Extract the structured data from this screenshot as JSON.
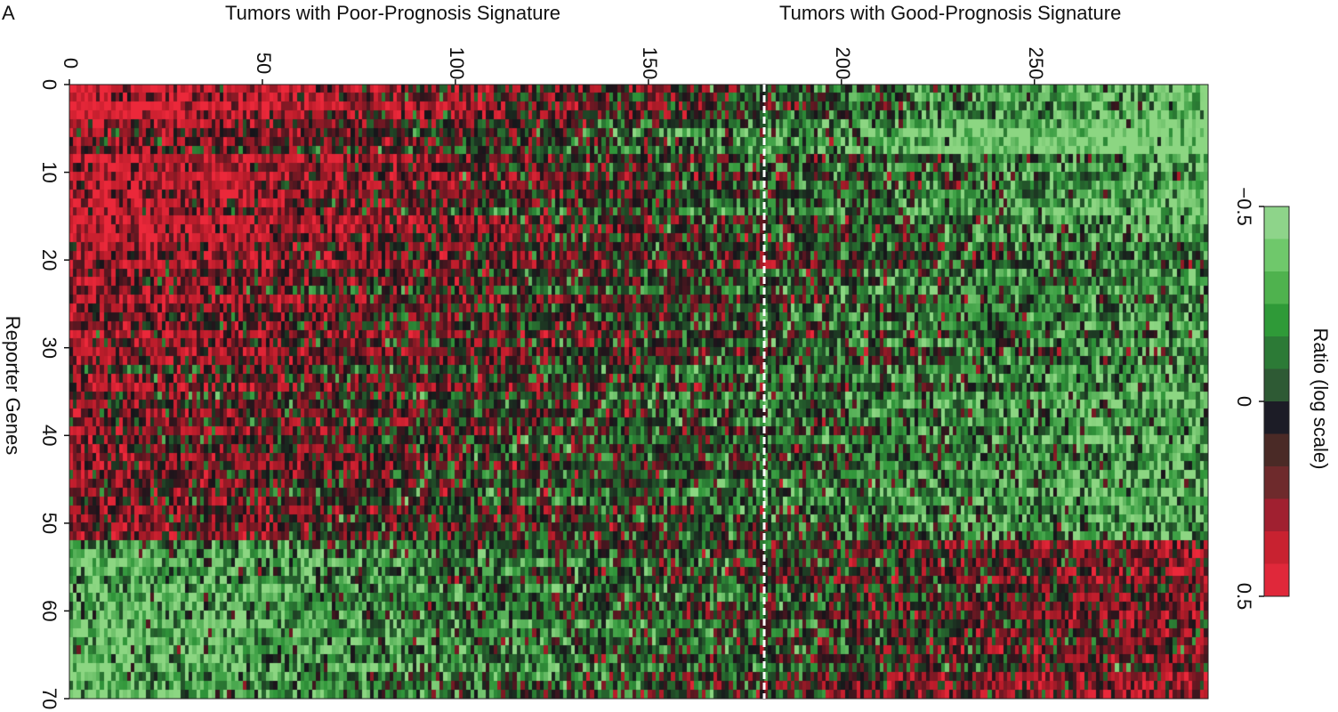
{
  "panel_label": "A",
  "chart_data": {
    "type": "heatmap",
    "group_titles": [
      "Tumors with Poor-Prognosis Signature",
      "Tumors with Good-Prognosis Signature"
    ],
    "ylabel": "Reporter Genes",
    "x_ticks": [
      "0",
      "50",
      "100",
      "150",
      "200",
      "250"
    ],
    "y_ticks": [
      "0",
      "10",
      "20",
      "30",
      "40",
      "50",
      "60",
      "70"
    ],
    "x_range": [
      0,
      295
    ],
    "y_range": [
      0,
      70
    ],
    "group_divider_x": 180,
    "colorbar": {
      "label": "Ratio (log scale)",
      "ticks": [
        "−0.5",
        "0",
        "0.5"
      ],
      "range": [
        -0.5,
        0.5
      ],
      "colors": [
        "#8ed48a",
        "#6fc86b",
        "#4fb24e",
        "#2f9a38",
        "#2c7a36",
        "#2e5a34",
        "#1c1c26",
        "#4a2a26",
        "#6e2a2c",
        "#a02030",
        "#c82230",
        "#e0283a"
      ]
    },
    "gene_blocks": [
      {
        "genes": [
          0,
          17
        ],
        "pattern": "red (positive) in poor-prognosis tumors, green (negative) in good-prognosis tumors"
      },
      {
        "genes": [
          18,
          51
        ],
        "pattern": "red to black in poor-prognosis tumors, green in good-prognosis tumors"
      },
      {
        "genes": [
          52,
          70
        ],
        "pattern": "green in poor-prognosis tumors, red to black in good-prognosis tumors"
      }
    ]
  }
}
